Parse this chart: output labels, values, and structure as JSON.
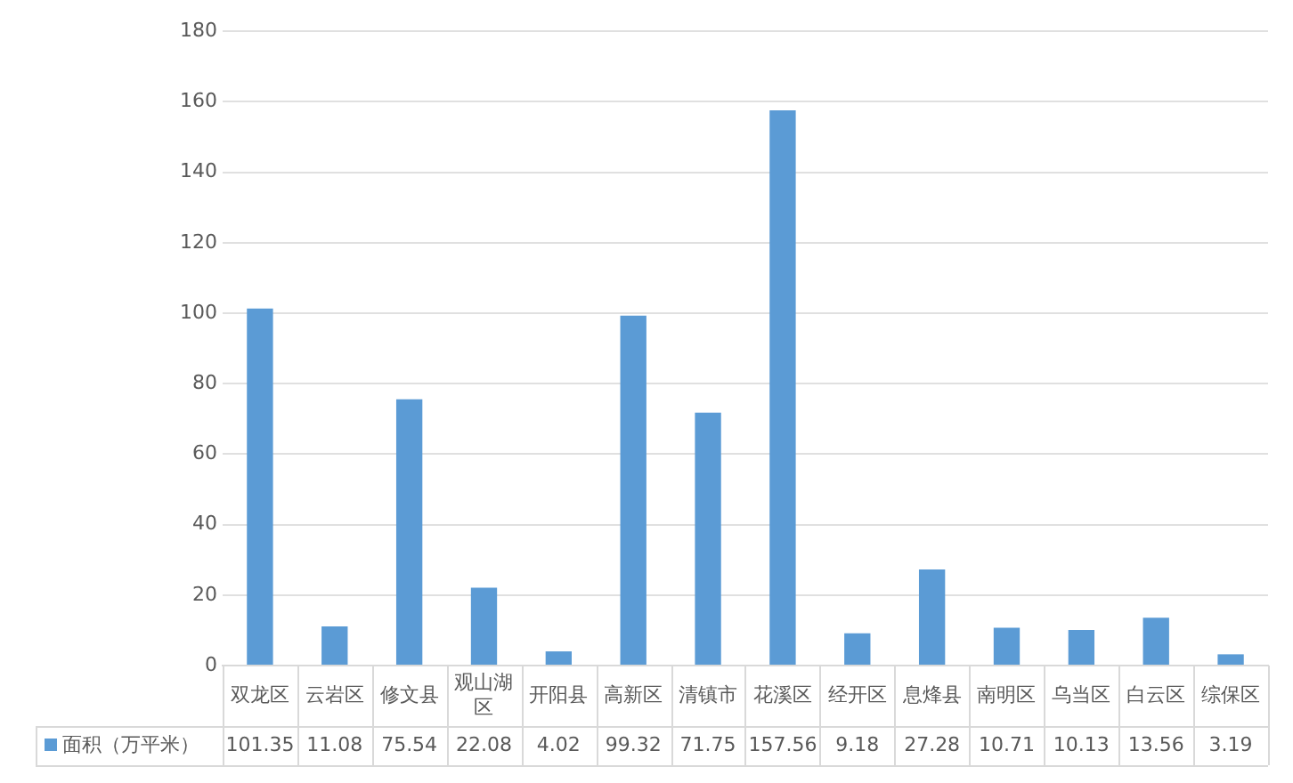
{
  "chart_data": {
    "type": "bar",
    "categories": [
      "双龙区",
      "云岩区",
      "修文县",
      "观山湖区",
      "开阳县",
      "高新区",
      "清镇市",
      "花溪区",
      "经开区",
      "息烽县",
      "南明区",
      "乌当区",
      "白云区",
      "综保区"
    ],
    "series": [
      {
        "name": "面积（万平米）",
        "color": "#5b9bd5",
        "values": [
          101.35,
          11.08,
          75.54,
          22.08,
          4.02,
          99.32,
          71.75,
          157.56,
          9.18,
          27.28,
          10.71,
          10.13,
          13.56,
          3.19
        ]
      }
    ],
    "ylim": [
      0,
      180
    ],
    "yticks": [
      0,
      20,
      40,
      60,
      80,
      100,
      120,
      140,
      160,
      180
    ],
    "grid": "y",
    "legend": "bottom",
    "data_labels": true
  }
}
